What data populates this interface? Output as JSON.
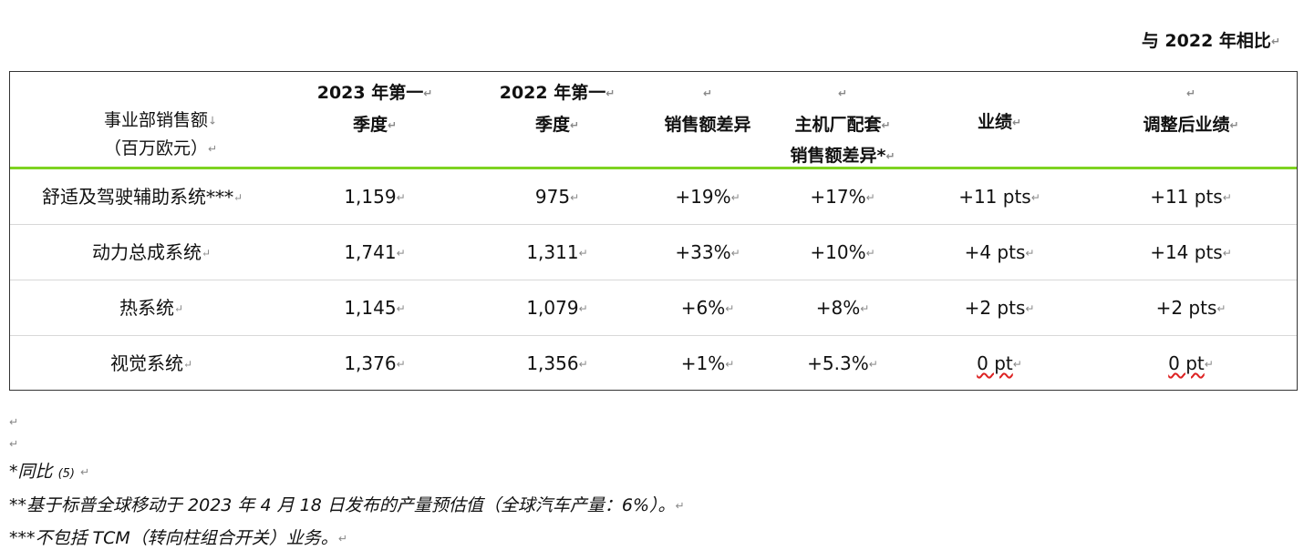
{
  "comparison_note": "与 2022 年相比",
  "header": {
    "col1_line1": "事业部销售额",
    "col1_line2": "（百万欧元）",
    "col2_line1": "2023 年第一",
    "col2_line2": "季度",
    "col3_line1": "2022 年第一",
    "col3_line2": "季度",
    "col4": "销售额差异",
    "col5_line1": "主机厂配套",
    "col5_line2": "销售额差异*",
    "col6": "业绩",
    "col7": "调整后业绩"
  },
  "rows": [
    {
      "name": "舒适及驾驶辅助系统***",
      "q1_2023": "1,159",
      "q1_2022": "975",
      "sales_diff": "+19%",
      "oem_diff": "+17%",
      "performance": "+11 pts",
      "adjusted": "+11 pts"
    },
    {
      "name": "动力总成系统",
      "q1_2023": "1,741",
      "q1_2022": "1,311",
      "sales_diff": "+33%",
      "oem_diff": "+10%",
      "performance": "+4 pts",
      "adjusted": "+14 pts"
    },
    {
      "name": "热系统",
      "q1_2023": "1,145",
      "q1_2022": "1,079",
      "sales_diff": "+6%",
      "oem_diff": "+8%",
      "performance": "+2 pts",
      "adjusted": "+2 pts"
    },
    {
      "name": "视觉系统",
      "q1_2023": "1,376",
      "q1_2022": "1,356",
      "sales_diff": "+1%",
      "oem_diff": "+5.3%",
      "performance": "0 pt",
      "adjusted": "0 pt"
    }
  ],
  "footnotes": {
    "note1_main": "*同比",
    "note1_ref": "(5)",
    "note2": "**基于标普全球移动于 2023 年 4 月 18 日发布的产量预估值（全球汽车产量：6%）。",
    "note3": "***不包括 TCM（转向柱组合开关）业务。"
  }
}
